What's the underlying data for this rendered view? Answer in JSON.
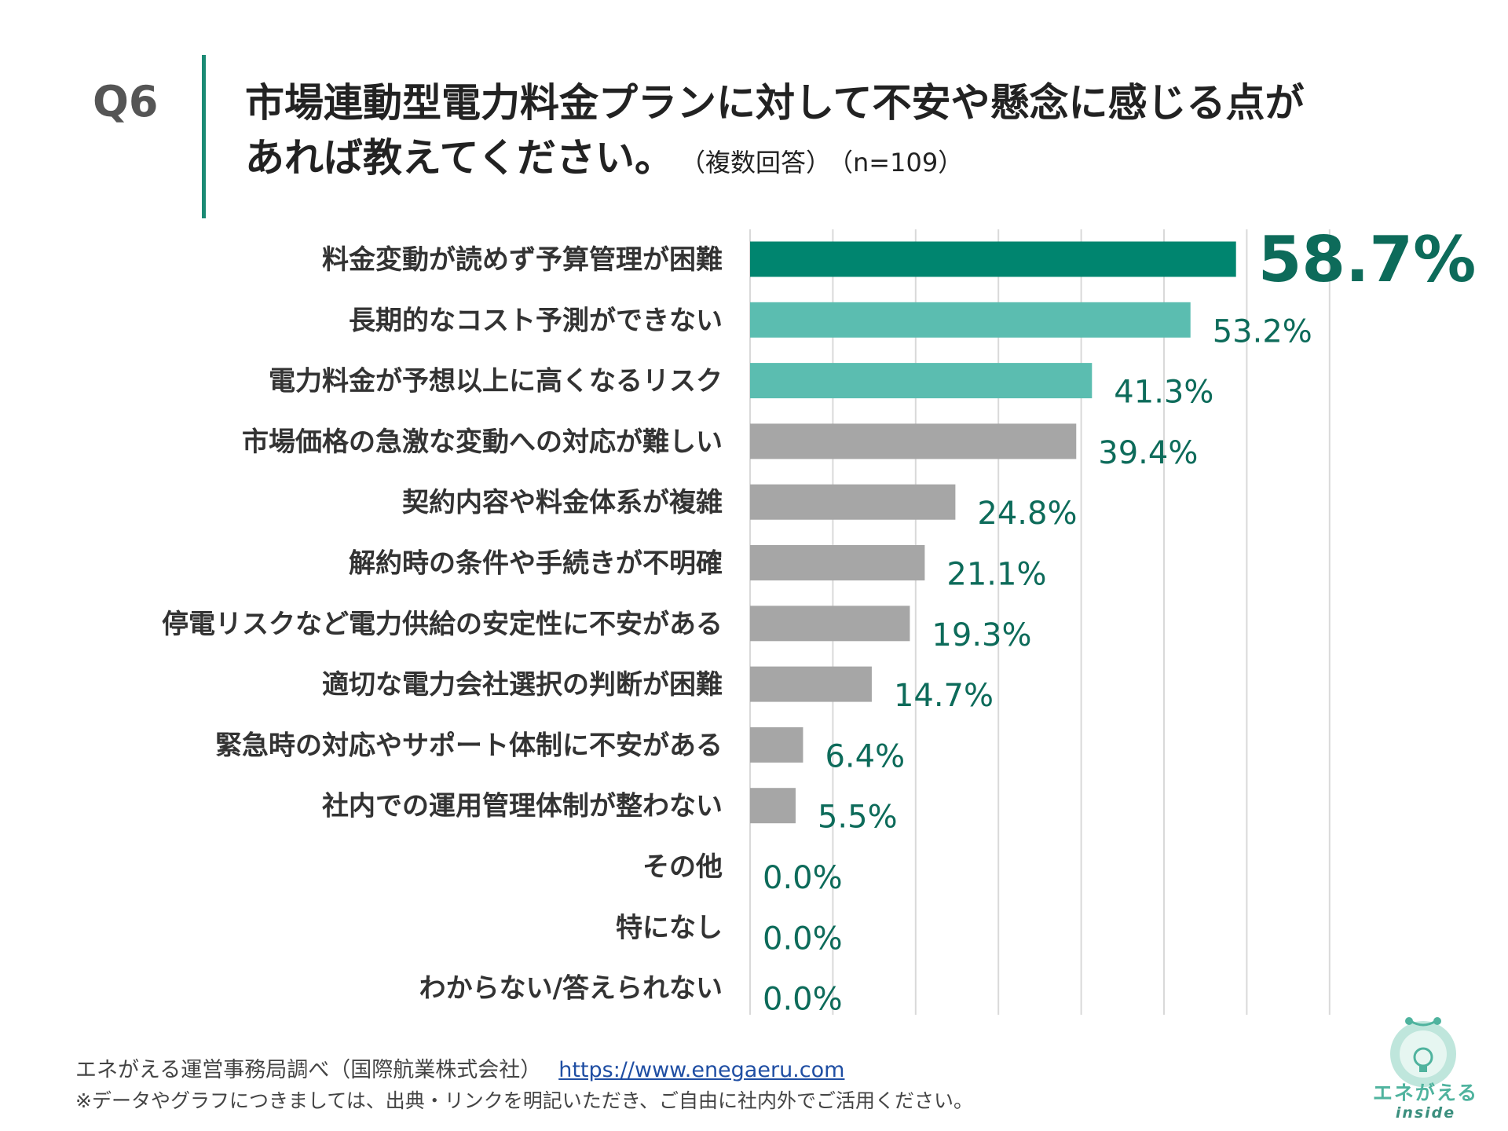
{
  "question": {
    "label": "Q6",
    "title_line1": "市場連動型電力料金プランに対して不安や懸念に感じる点が",
    "title_line2": "あれば教えてください。",
    "note_multiple": "（複数回答）",
    "note_n": "（n=109）"
  },
  "colors": {
    "highlight": "#00856f",
    "secondary": "#5bbdb0",
    "neutral": "#a6a6a6",
    "value_text": "#0d6b5a",
    "gridline": "#d9d9d9"
  },
  "chart_data": {
    "type": "bar",
    "orientation": "horizontal",
    "title": "",
    "xlabel": "",
    "ylabel": "",
    "xlim": [
      0,
      70
    ],
    "grid": true,
    "categories": [
      "料金変動が読めず予算管理が困難",
      "長期的なコスト予測ができない",
      "電力料金が予想以上に高くなるリスク",
      "市場価格の急激な変動への対応が難しい",
      "契約内容や料金体系が複雑",
      "解約時の条件や手続きが不明確",
      "停電リスクなど電力供給の安定性に不安がある",
      "適切な電力会社選択の判断が困難",
      "緊急時の対応やサポート体制に不安がある",
      "社内での運用管理体制が整わない",
      "その他",
      "特になし",
      "わからない/答えられない"
    ],
    "values": [
      58.7,
      53.2,
      41.3,
      39.4,
      24.8,
      21.1,
      19.3,
      14.7,
      6.4,
      5.5,
      0.0,
      0.0,
      0.0
    ],
    "value_labels": [
      "58.7%",
      "53.2%",
      "41.3%",
      "39.4%",
      "24.8%",
      "21.1%",
      "19.3%",
      "14.7%",
      "6.4%",
      "5.5%",
      "0.0%",
      "0.0%",
      "0.0%"
    ],
    "bar_colors": [
      "highlight",
      "secondary",
      "secondary",
      "neutral",
      "neutral",
      "neutral",
      "neutral",
      "neutral",
      "neutral",
      "neutral",
      "neutral",
      "neutral",
      "neutral"
    ]
  },
  "footer": {
    "source": "エネがえる運営事務局調べ（国際航業株式会社）",
    "url": "https://www.enegaeru.com",
    "note": "※データやグラフにつきましては、出典・リンクを明記いただき、ご自由に社内外でご活用ください。"
  },
  "logo": {
    "text": "エネがえる",
    "sub": "inside"
  }
}
